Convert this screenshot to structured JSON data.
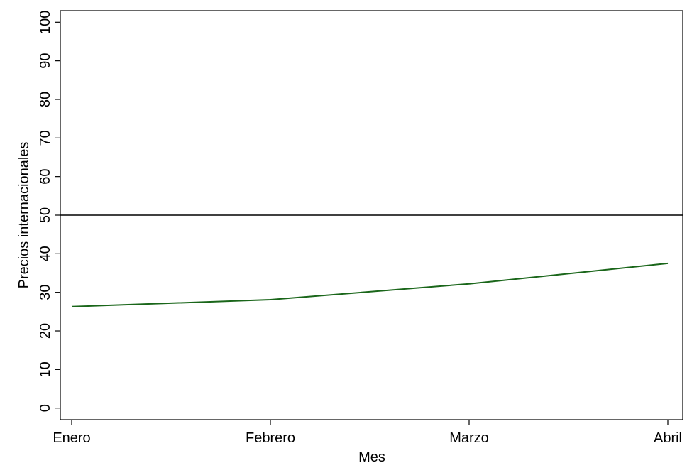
{
  "chart_data": {
    "type": "line",
    "x_label": "Mes",
    "y_label": "Precios internacionales",
    "categories": [
      "Enero",
      "Febrero",
      "Marzo",
      "Abril"
    ],
    "series": [
      {
        "name": "Precios internacionales",
        "color": "#1a661a",
        "values": [
          26.3,
          28.1,
          32.2,
          37.5
        ]
      }
    ],
    "ylim": [
      -3,
      103
    ],
    "yticks": [
      0,
      10,
      20,
      30,
      40,
      50,
      60,
      70,
      80,
      90,
      100
    ],
    "reference_line": 50,
    "grid": false
  }
}
